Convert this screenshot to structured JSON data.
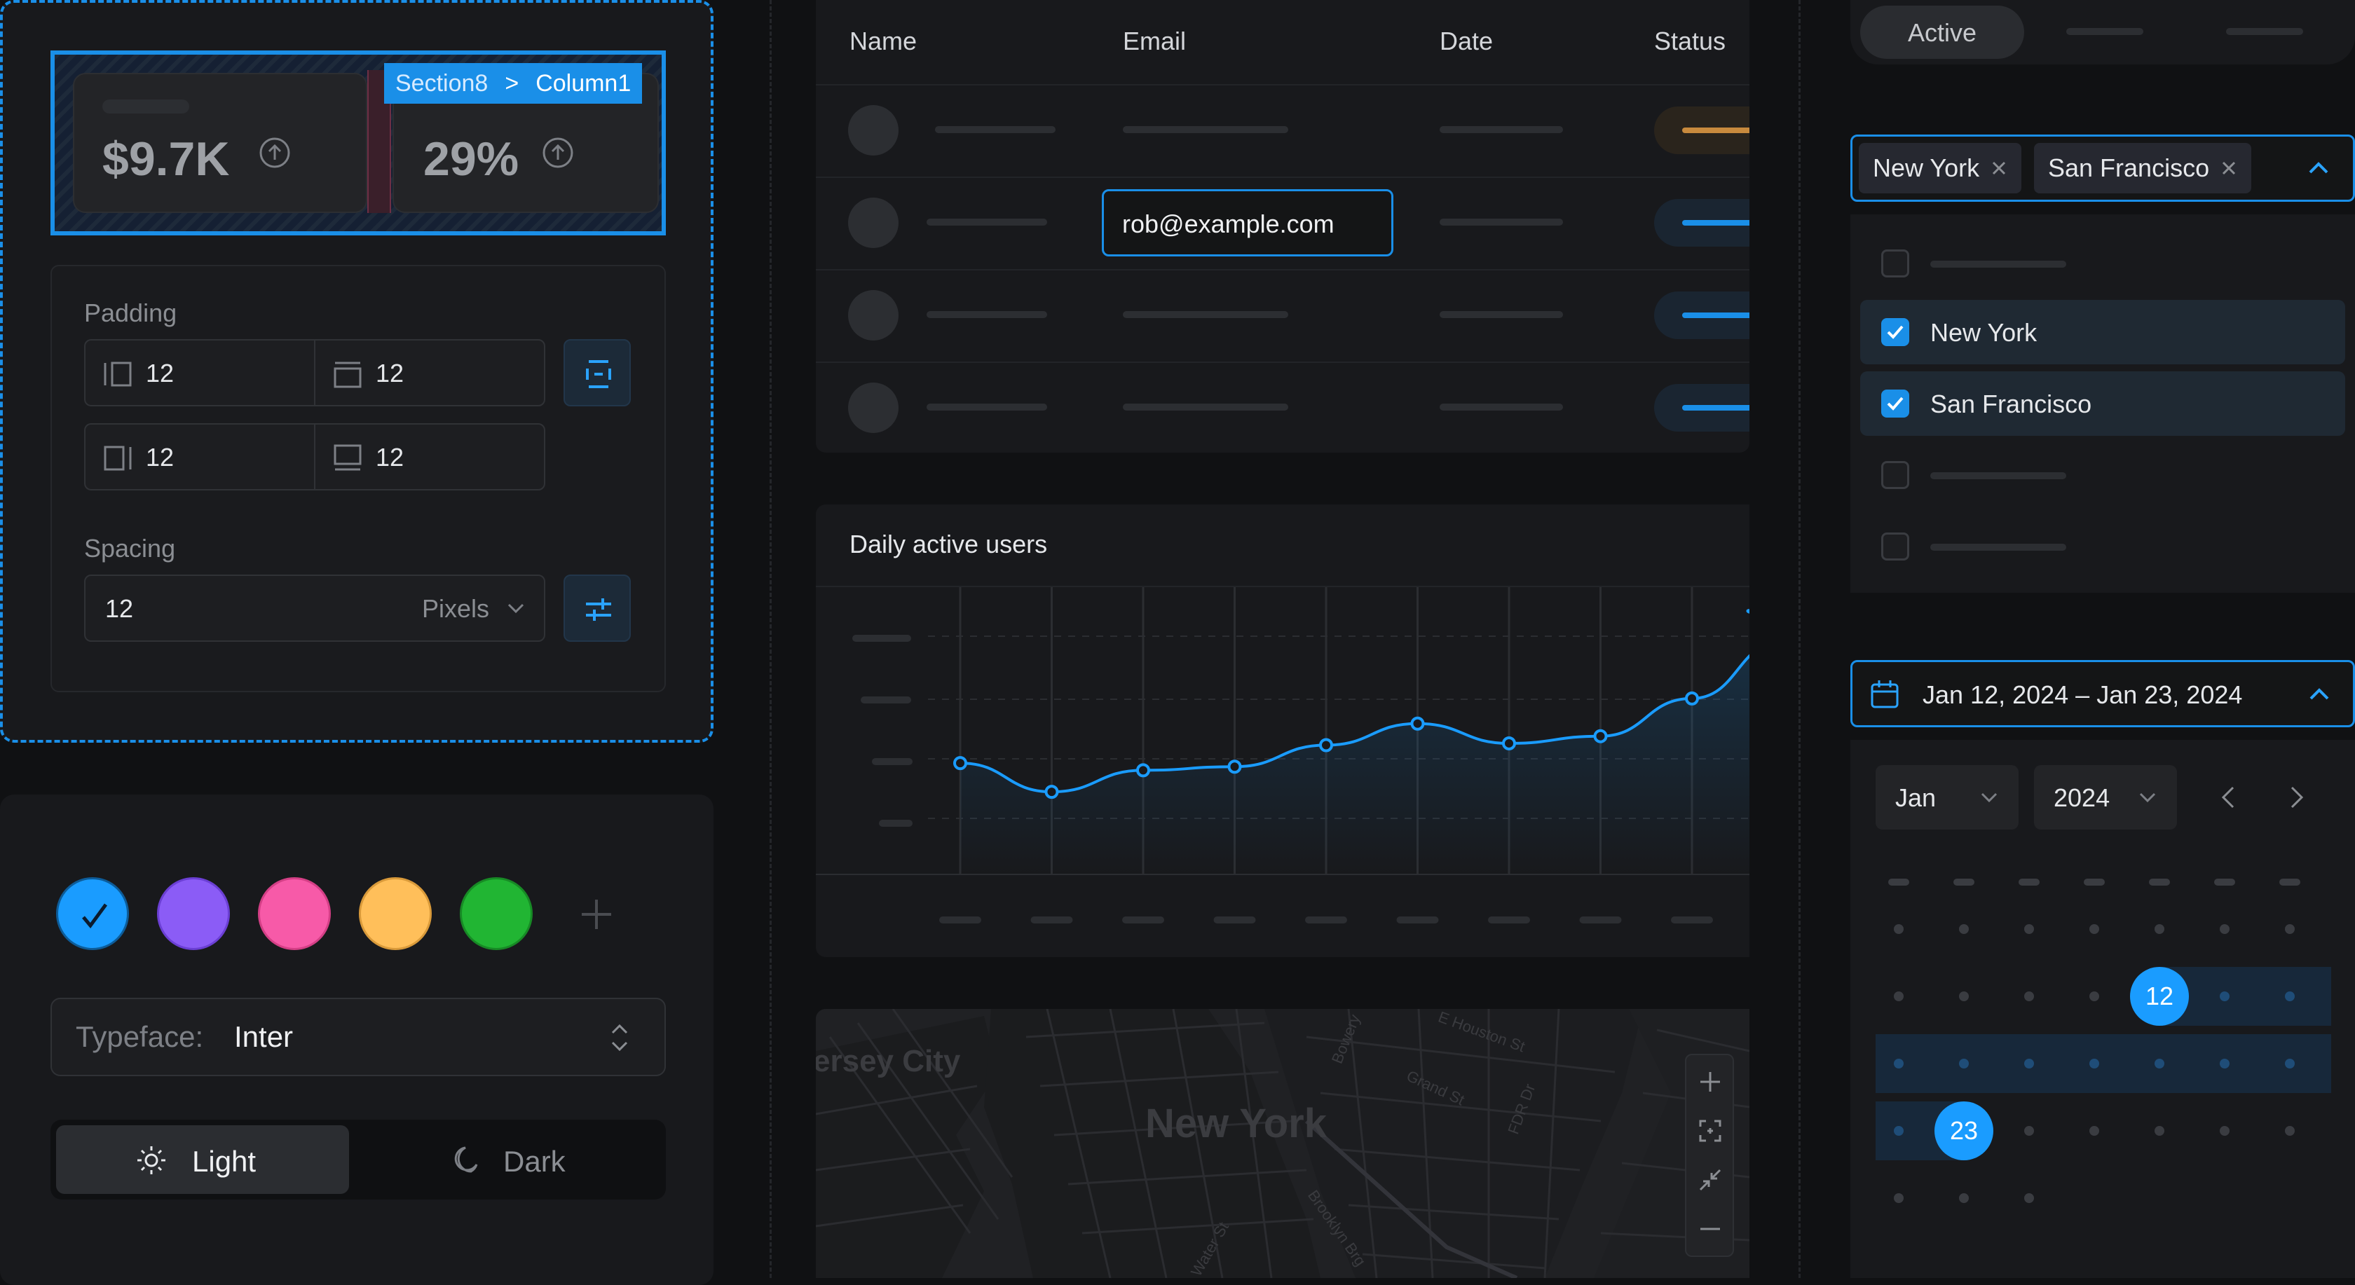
{
  "stats": [
    {
      "value": "$9.7K"
    },
    {
      "value": "29%"
    }
  ],
  "breadcrumb": {
    "section": "Section8",
    "separator": ">",
    "column": "Column1"
  },
  "padding": {
    "label": "Padding",
    "left": "12",
    "top": "12",
    "right": "12",
    "bottom": "12"
  },
  "spacing": {
    "label": "Spacing",
    "value": "12",
    "unit": "Pixels"
  },
  "swatches": {
    "colors": [
      "#1a9cff",
      "#8b5cf6",
      "#f75aa8",
      "#ffbf5a",
      "#21b533"
    ],
    "selected_index": 0
  },
  "typeface": {
    "label": "Typeface:",
    "value": "Inter"
  },
  "theme": {
    "light": "Light",
    "dark": "Dark",
    "selected": "Light"
  },
  "table": {
    "headers": {
      "name": "Name",
      "email": "Email",
      "date": "Date",
      "status": "Status"
    },
    "editing_email": "rob@example.com",
    "status_colors": [
      "#c88a3d",
      "#1a8fe8",
      "#1a8fe8",
      "#1a8fe8"
    ]
  },
  "chart": {
    "title": "Daily active users"
  },
  "chart_data": {
    "type": "line",
    "title": "Daily active users",
    "x": [
      1,
      2,
      3,
      4,
      5,
      6,
      7,
      8,
      9,
      10
    ],
    "values": [
      62,
      46,
      58,
      60,
      72,
      84,
      73,
      77,
      98,
      130
    ],
    "ylim": [
      0,
      160
    ],
    "grid": true,
    "xlabel": "",
    "ylabel": ""
  },
  "map": {
    "labels": [
      {
        "text": "New York",
        "name": "map-label-new-york"
      },
      {
        "text": "ersey City",
        "name": "map-label-jersey-city"
      },
      {
        "text": "E Houston St",
        "name": "map-label-houston"
      },
      {
        "text": "Grand St",
        "name": "map-label-grand"
      },
      {
        "text": "FDR Dr",
        "name": "map-label-fdr"
      },
      {
        "text": "Bowery",
        "name": "map-label-bowery"
      },
      {
        "text": "Brooklyn Brg",
        "name": "map-label-brooklyn-bridge"
      },
      {
        "text": "Water St",
        "name": "map-label-water"
      }
    ]
  },
  "tabs": {
    "active": "Active"
  },
  "multiselect": {
    "selected_tags": [
      "New York",
      "San Francisco"
    ],
    "options": [
      {
        "label": "",
        "checked": false
      },
      {
        "label": "New York",
        "checked": true
      },
      {
        "label": "San Francisco",
        "checked": true
      },
      {
        "label": "",
        "checked": false
      },
      {
        "label": "",
        "checked": false
      }
    ]
  },
  "date_range": {
    "value": "Jan 12, 2024 – Jan 23, 2024",
    "month": "Jan",
    "year": "2024",
    "start_day": "12",
    "end_day": "23"
  },
  "colors": {
    "accent": "#1a8fe8"
  }
}
